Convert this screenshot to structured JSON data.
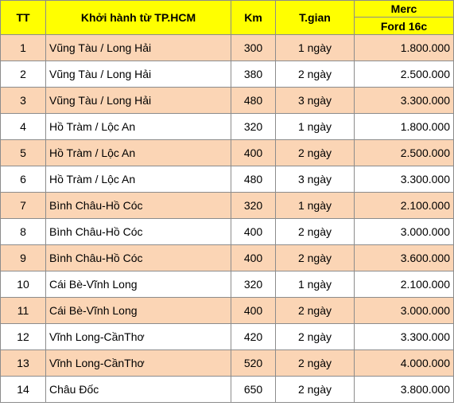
{
  "header": {
    "col_tt": "TT",
    "col_route": "Khởi hành từ TP.HCM",
    "col_km": "Km",
    "col_time": "T.gian",
    "col_price_top": "Merc",
    "col_price_bottom": "Ford 16c"
  },
  "colors": {
    "header_bg": "#ffff00",
    "odd_row_bg": "#fbd5b5",
    "even_row_bg": "#ffffff",
    "grid": "#8c8c8c"
  },
  "rows": [
    {
      "tt": "1",
      "route": "Vũng Tàu / Long Hải",
      "km": "300",
      "time": "1 ngày",
      "price": "1.800.000"
    },
    {
      "tt": "2",
      "route": "Vũng Tàu / Long Hải",
      "km": "380",
      "time": "2 ngày",
      "price": "2.500.000"
    },
    {
      "tt": "3",
      "route": "Vũng Tàu / Long Hải",
      "km": "480",
      "time": "3 ngày",
      "price": "3.300.000"
    },
    {
      "tt": "4",
      "route": "Hồ Tràm / Lộc An",
      "km": "320",
      "time": "1 ngày",
      "price": "1.800.000"
    },
    {
      "tt": "5",
      "route": "Hồ Tràm / Lộc An",
      "km": "400",
      "time": "2 ngày",
      "price": "2.500.000"
    },
    {
      "tt": "6",
      "route": "Hồ Tràm / Lộc An",
      "km": "480",
      "time": "3 ngày",
      "price": "3.300.000"
    },
    {
      "tt": "7",
      "route": "Bình Châu-Hồ Cóc",
      "km": "320",
      "time": "1 ngày",
      "price": "2.100.000"
    },
    {
      "tt": "8",
      "route": "Bình Châu-Hồ Cóc",
      "km": "400",
      "time": "2 ngày",
      "price": "3.000.000"
    },
    {
      "tt": "9",
      "route": "Bình Châu-Hồ Cóc",
      "km": "400",
      "time": "2 ngày",
      "price": "3.600.000"
    },
    {
      "tt": "10",
      "route": "Cái Bè-Vĩnh Long",
      "km": "320",
      "time": "1 ngày",
      "price": "2.100.000"
    },
    {
      "tt": "11",
      "route": "Cái Bè-Vĩnh Long",
      "km": "400",
      "time": "2 ngày",
      "price": "3.000.000"
    },
    {
      "tt": "12",
      "route": "Vĩnh Long-CầnThơ",
      "km": "420",
      "time": "2 ngày",
      "price": "3.300.000"
    },
    {
      "tt": "13",
      "route": "Vĩnh Long-CầnThơ",
      "km": "520",
      "time": "2 ngày",
      "price": "4.000.000"
    },
    {
      "tt": "14",
      "route": "Châu Đốc",
      "km": "650",
      "time": "2 ngày",
      "price": "3.800.000"
    }
  ]
}
